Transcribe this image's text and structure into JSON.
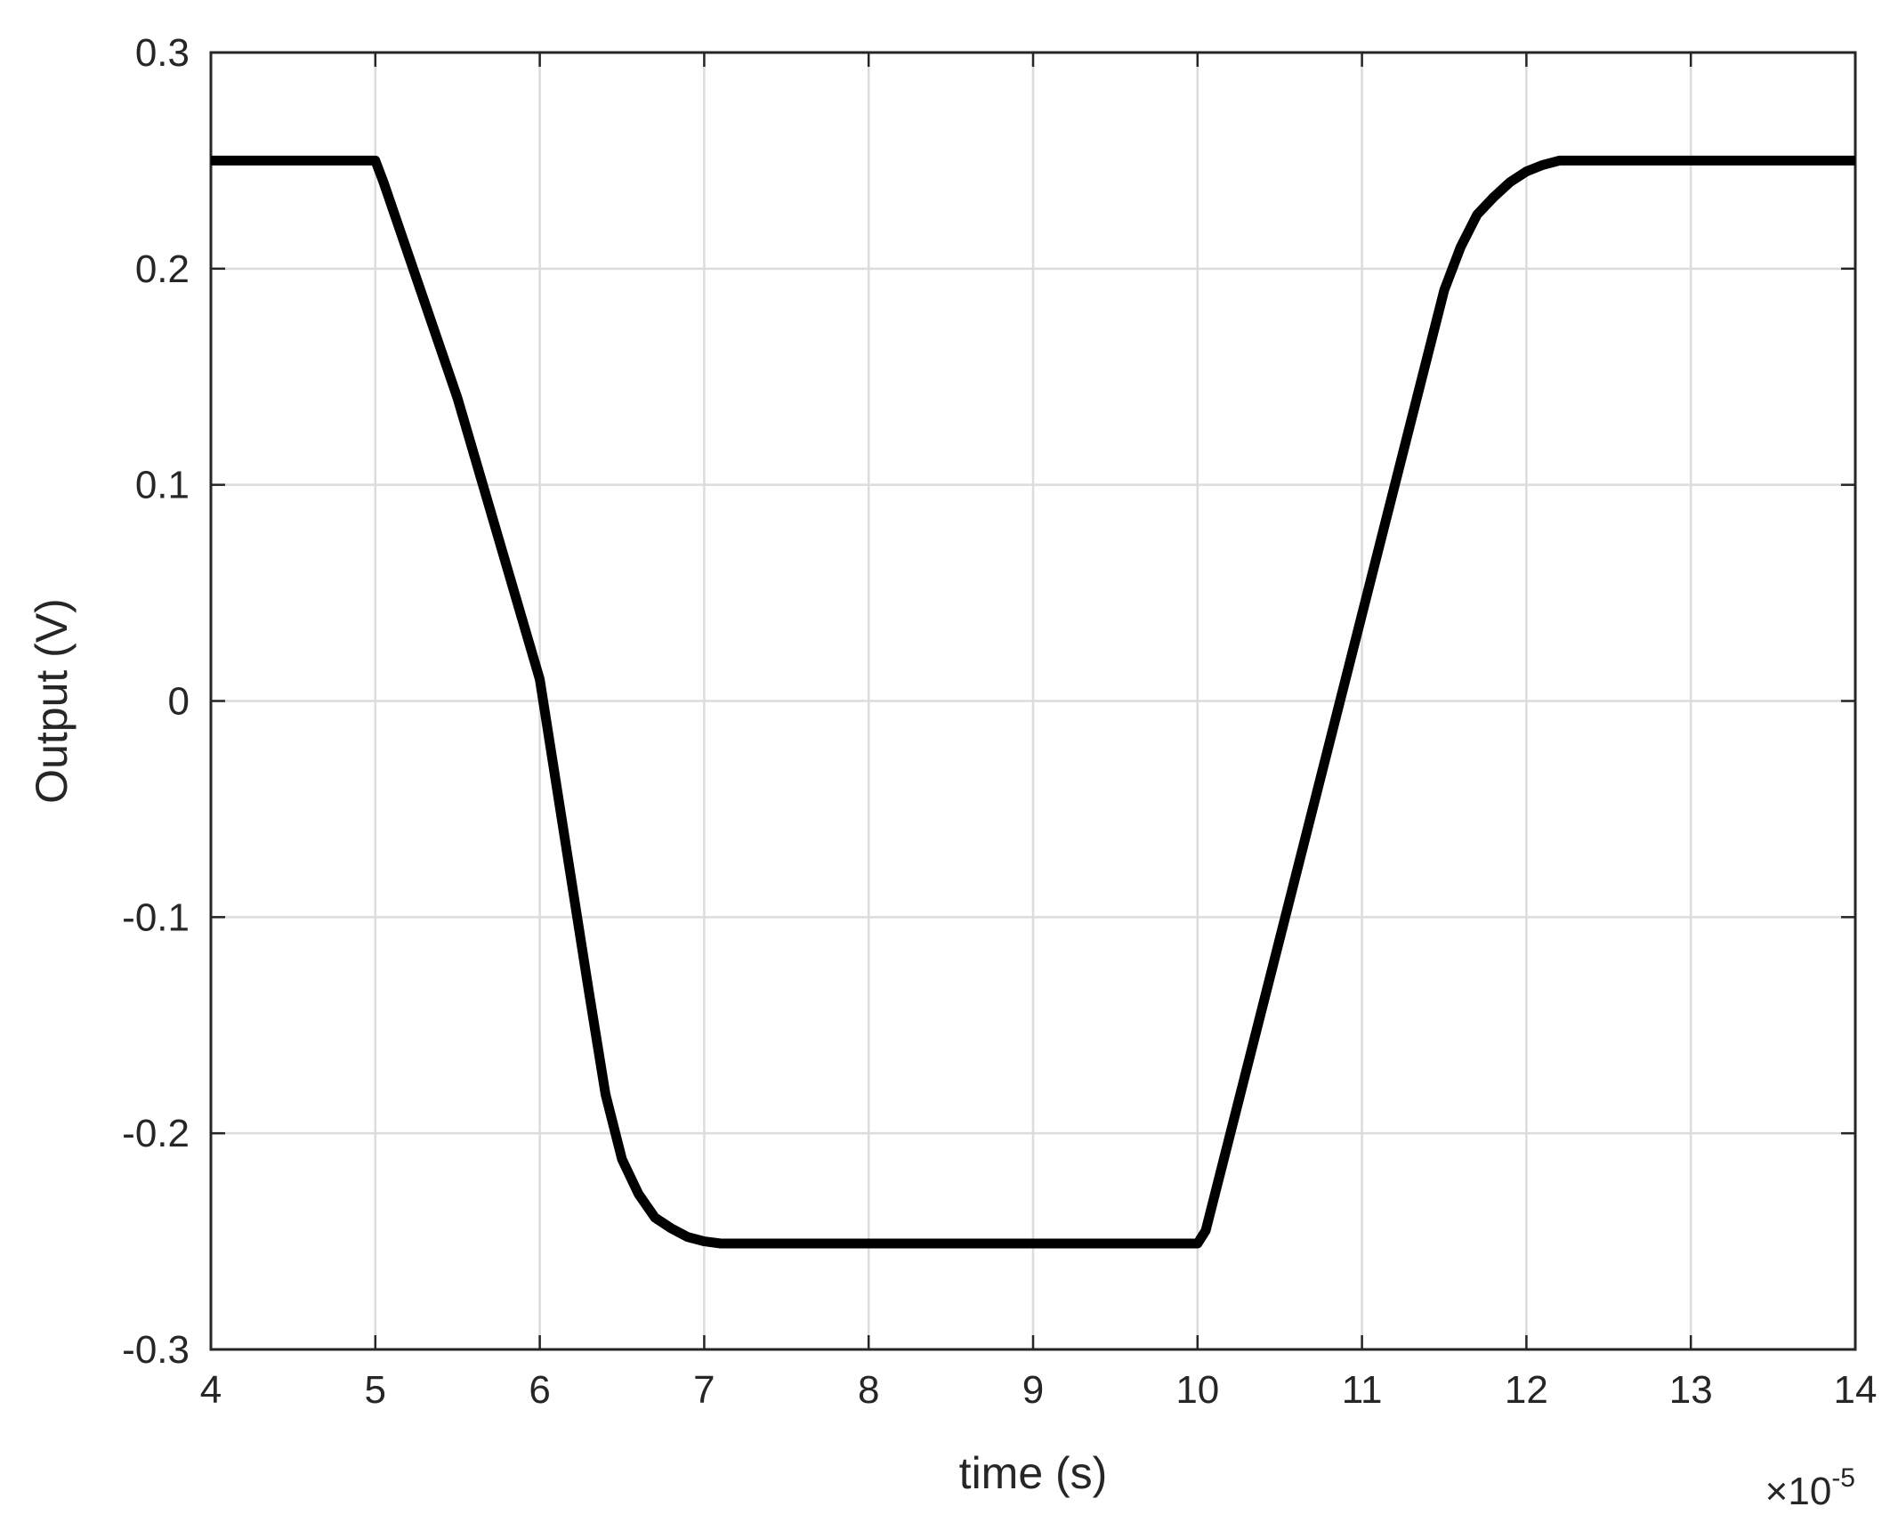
{
  "chart_data": {
    "type": "line",
    "title": "",
    "xlabel": "time (s)",
    "ylabel": "Output (V)",
    "x_exponent_base": "×10",
    "x_exponent_power": "-5",
    "xlim": [
      4,
      14
    ],
    "ylim": [
      -0.3,
      0.3
    ],
    "x_ticks": [
      4,
      5,
      6,
      7,
      8,
      9,
      10,
      11,
      12,
      13,
      14
    ],
    "x_tick_labels": [
      "4",
      "5",
      "6",
      "7",
      "8",
      "9",
      "10",
      "11",
      "12",
      "13",
      "14"
    ],
    "y_ticks": [
      -0.3,
      -0.2,
      -0.1,
      0,
      0.1,
      0.2,
      0.3
    ],
    "y_tick_labels": [
      "-0.3",
      "-0.2",
      "-0.1",
      "0",
      "0.1",
      "0.2",
      "0.3"
    ],
    "grid": true,
    "line_color": "#000000",
    "series": [
      {
        "x": [
          4.0,
          5.0,
          5.05,
          5.5,
          6.0,
          6.3,
          6.4,
          6.5,
          6.6,
          6.7,
          6.8,
          6.9,
          7.0,
          7.1,
          7.2,
          8.0,
          9.0,
          10.0,
          10.05,
          10.5,
          11.0,
          11.5,
          11.6,
          11.7,
          11.8,
          11.9,
          12.0,
          12.1,
          12.2,
          12.4,
          13.0,
          14.0
        ],
        "y": [
          0.25,
          0.25,
          0.24,
          0.14,
          0.01,
          -0.135,
          -0.182,
          -0.212,
          -0.228,
          -0.239,
          -0.244,
          -0.248,
          -0.25,
          -0.251,
          -0.251,
          -0.251,
          -0.251,
          -0.251,
          -0.245,
          -0.11,
          0.04,
          0.19,
          0.21,
          0.225,
          0.233,
          0.24,
          0.245,
          0.248,
          0.25,
          0.25,
          0.25,
          0.25
        ]
      }
    ]
  }
}
